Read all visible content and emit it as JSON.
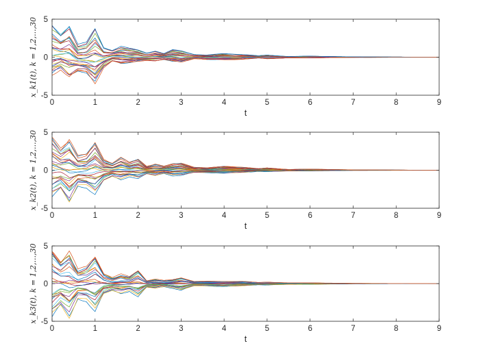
{
  "chart_data": [
    {
      "type": "line",
      "xlabel": "t",
      "ylabel": "x_k1(t), k = 1,2,...,30",
      "xlim": [
        0,
        9
      ],
      "ylim": [
        -5,
        5
      ],
      "xticks": [
        "0",
        "1",
        "2",
        "3",
        "4",
        "5",
        "6",
        "7",
        "8",
        "9"
      ],
      "yticks": [
        "-5",
        "0",
        "5"
      ],
      "grid": false,
      "series_count": 30,
      "envelope": {
        "t": [
          0,
          0.2,
          0.4,
          0.6,
          0.8,
          1.0,
          1.2,
          1.4,
          1.6,
          1.8,
          2.0,
          2.2,
          2.4,
          2.6,
          2.8,
          3.0,
          3.3,
          3.6,
          4.0,
          4.4,
          4.8,
          5.0,
          5.5,
          6.0,
          7.0,
          8.0,
          9.0
        ],
        "upper": [
          4.4,
          3.2,
          4.6,
          1.8,
          2.0,
          4.0,
          1.4,
          1.0,
          1.5,
          1.2,
          1.0,
          0.6,
          0.9,
          0.5,
          1.0,
          0.9,
          0.4,
          0.3,
          0.5,
          0.4,
          0.2,
          0.3,
          0.1,
          0.15,
          0.05,
          0.03,
          0.0
        ],
        "lower": [
          -2.2,
          -1.5,
          -2.6,
          -1.8,
          -2.0,
          -3.3,
          -1.3,
          -0.5,
          -0.8,
          -0.7,
          -0.5,
          -0.4,
          -0.5,
          -0.3,
          -0.5,
          -0.6,
          -0.2,
          -0.3,
          -0.3,
          -0.3,
          -0.1,
          -0.2,
          -0.1,
          -0.1,
          -0.03,
          -0.02,
          0.0
        ]
      }
    },
    {
      "type": "line",
      "xlabel": "t",
      "ylabel": "x_k2(t), k = 1,2,...,30",
      "xlim": [
        0,
        9
      ],
      "ylim": [
        -5,
        5
      ],
      "xticks": [
        "0",
        "1",
        "2",
        "3",
        "4",
        "5",
        "6",
        "7",
        "8",
        "9"
      ],
      "yticks": [
        "-5",
        "0",
        "5"
      ],
      "grid": false,
      "series_count": 30,
      "envelope": {
        "t": [
          0,
          0.2,
          0.4,
          0.6,
          0.8,
          1.0,
          1.2,
          1.4,
          1.6,
          1.8,
          2.0,
          2.2,
          2.4,
          2.6,
          2.8,
          3.0,
          3.3,
          3.6,
          4.0,
          4.4,
          4.8,
          5.0,
          5.5,
          6.0,
          7.0,
          8.0,
          9.0
        ],
        "upper": [
          4.2,
          2.8,
          4.0,
          1.8,
          2.0,
          3.5,
          1.4,
          0.9,
          1.6,
          1.0,
          1.4,
          0.5,
          0.8,
          0.5,
          0.8,
          0.9,
          0.4,
          0.3,
          0.5,
          0.4,
          0.2,
          0.3,
          0.1,
          0.15,
          0.05,
          0.03,
          0.0
        ],
        "lower": [
          -3.5,
          -2.5,
          -4.2,
          -2.0,
          -2.2,
          -3.2,
          -1.4,
          -0.8,
          -1.2,
          -0.8,
          -1.1,
          -0.5,
          -0.7,
          -0.4,
          -0.7,
          -0.7,
          -0.3,
          -0.3,
          -0.4,
          -0.3,
          -0.15,
          -0.2,
          -0.1,
          -0.1,
          -0.03,
          -0.02,
          0.0
        ]
      }
    },
    {
      "type": "line",
      "xlabel": "t",
      "ylabel": "x_k3(t), k = 1,2,...,30",
      "xlim": [
        0,
        9
      ],
      "ylim": [
        -5,
        5
      ],
      "xticks": [
        "0",
        "1",
        "2",
        "3",
        "4",
        "5",
        "6",
        "7",
        "8",
        "9"
      ],
      "yticks": [
        "-5",
        "0",
        "5"
      ],
      "grid": false,
      "series_count": 30,
      "envelope": {
        "t": [
          0,
          0.2,
          0.4,
          0.6,
          0.8,
          1.0,
          1.2,
          1.4,
          1.6,
          1.8,
          2.0,
          2.2,
          2.4,
          2.6,
          2.8,
          3.0,
          3.3,
          3.6,
          4.0,
          4.4,
          4.8,
          5.0,
          5.5,
          6.0,
          7.0,
          8.0,
          9.0
        ],
        "upper": [
          4.5,
          3.0,
          4.3,
          1.8,
          2.2,
          3.7,
          1.4,
          0.8,
          1.2,
          0.9,
          1.8,
          0.4,
          0.6,
          0.4,
          0.5,
          0.8,
          0.3,
          0.3,
          0.3,
          0.3,
          0.15,
          0.2,
          0.1,
          0.1,
          0.03,
          0.02,
          0.0
        ],
        "lower": [
          -4.5,
          -3.0,
          -4.6,
          -2.0,
          -2.3,
          -3.8,
          -1.4,
          -0.9,
          -1.3,
          -1.0,
          -1.8,
          -0.5,
          -0.6,
          -0.4,
          -0.6,
          -0.9,
          -0.3,
          -0.3,
          -0.4,
          -0.3,
          -0.15,
          -0.2,
          -0.1,
          -0.1,
          -0.03,
          -0.02,
          0.0
        ]
      }
    }
  ],
  "palette": [
    "#0072BD",
    "#D95319",
    "#EDB120",
    "#7E2F8E",
    "#77AC30",
    "#4DBEEE",
    "#A2142F"
  ]
}
